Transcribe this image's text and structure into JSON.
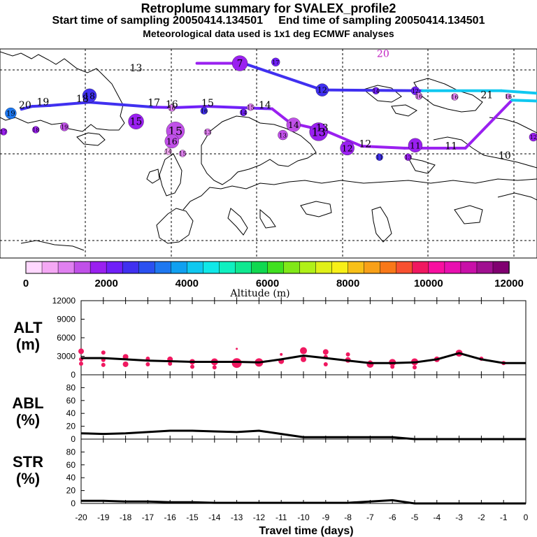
{
  "title": "Retroplume summary for SVALEX_profile2",
  "subtitle1": "Start time of sampling 20050414.134501     End time of sampling 20050414.134501",
  "subtitle2": "Meteorological data used is 1x1 deg ECMWF analyses",
  "colorbar": {
    "label": "Altitude (m)",
    "ticks": [
      "0",
      "2000",
      "4000",
      "6000",
      "8000",
      "10000",
      "12000"
    ],
    "colors": [
      "#ffd8ff",
      "#f4a8f4",
      "#e080f0",
      "#c050e8",
      "#9a20f0",
      "#7020f8",
      "#4030f0",
      "#2a50f0",
      "#1e78f0",
      "#10a0f0",
      "#10c8f0",
      "#10e8e8",
      "#10f0c0",
      "#10e890",
      "#10d850",
      "#40e020",
      "#80e818",
      "#b0f018",
      "#e0f018",
      "#f8f018",
      "#f8c018",
      "#f8a018",
      "#f87818",
      "#f85030",
      "#f01860",
      "#f810a0",
      "#e810b0",
      "#c810a8",
      "#a01090",
      "#800070"
    ]
  },
  "map_labels": [
    {
      "text": "20",
      "lat": 76.5,
      "lon": -53,
      "col": "#000000"
    },
    {
      "text": "19",
      "lat": 77.3,
      "lon": -48,
      "col": "#000000"
    },
    {
      "text": "18",
      "lat": 78,
      "lon": -37,
      "col": "#000000"
    },
    {
      "text": "17",
      "lat": 77.1,
      "lon": -17,
      "col": "#000000"
    },
    {
      "text": "16",
      "lat": 76.7,
      "lon": -12,
      "col": "#000000"
    },
    {
      "text": "15",
      "lat": 77.0,
      "lon": -2,
      "col": "#000000"
    },
    {
      "text": "14",
      "lat": 76.5,
      "lon": 14,
      "col": "#000000"
    },
    {
      "text": "13",
      "lat": 71.0,
      "lon": 30,
      "col": "#000000"
    },
    {
      "text": "12",
      "lat": 67.0,
      "lon": 42,
      "col": "#000000"
    },
    {
      "text": "11",
      "lat": 66.5,
      "lon": 66,
      "col": "#000000"
    },
    {
      "text": "21",
      "lat": 79.0,
      "lon": 76,
      "col": "#000000"
    },
    {
      "text": "13",
      "lat": 85.5,
      "lon": -22,
      "col": "#000000"
    },
    {
      "text": "20",
      "lat": 89.0,
      "lon": 47,
      "col": "#c020c0"
    },
    {
      "text": "10",
      "lat": 64.2,
      "lon": 81,
      "col": "#000000"
    }
  ],
  "chart_data": [
    {
      "type": "map-trajectory",
      "title": "Retroplume centroid track",
      "projection": {
        "lon_range": [
          -60,
          90
        ],
        "lat_range": [
          40,
          91
        ]
      },
      "track": {
        "lons": [
          -54,
          -51,
          -46,
          -35,
          -17,
          -11,
          -2,
          16,
          21,
          31,
          41,
          53,
          70,
          83,
          90
        ],
        "lats": [
          76.3,
          77.0,
          77.2,
          78.0,
          76.8,
          76.7,
          77.0,
          76.4,
          73.0,
          71.0,
          67.3,
          66.8,
          66.8,
          78.5,
          78.3
        ],
        "altitude_m": [
          2600,
          2600,
          2700,
          2500,
          2200,
          2200,
          2200,
          2800,
          2800,
          2800,
          2100,
          2200,
          2200,
          4000,
          4000
        ],
        "color_codes": [
          "#4030f0",
          "#4030f0",
          "#4030f0",
          "#4030f0",
          "#7020f8",
          "#7020f8",
          "#7020f8",
          "#9a20f0",
          "#9a20f0",
          "#9a20f0",
          "#9a20f0",
          "#9a20f0",
          "#9a20f0",
          "#10c8f0",
          "#10c8f0"
        ]
      },
      "upper_track": {
        "lons": [
          -5,
          8,
          30,
          58,
          80,
          90
        ],
        "lats": [
          87.5,
          87.5,
          81.0,
          80.8,
          80.8,
          80.2
        ],
        "color_codes": [
          "#9a20f0",
          "#4030f0",
          "#4030f0",
          "#10c8f0",
          "#10c8f0",
          "#10c8f0"
        ]
      },
      "clusters": [
        {
          "label": "7",
          "lat": 87.5,
          "lon": 7,
          "alt_m": 3500,
          "size": 11,
          "col": "#9a20f0"
        },
        {
          "label": "17",
          "lat": 87.8,
          "lon": 17,
          "alt_m": 2500,
          "size": 6,
          "col": "#7020f8"
        },
        {
          "label": "12",
          "lat": 81.0,
          "lon": 30,
          "alt_m": 2900,
          "size": 9,
          "col": "#4030f0"
        },
        {
          "label": "14",
          "lat": 80.8,
          "lon": 45,
          "alt_m": 2900,
          "size": 5,
          "col": "#7020f8"
        },
        {
          "label": "12",
          "lat": 80.8,
          "lon": 56,
          "alt_m": 2900,
          "size": 6,
          "col": "#7020f8"
        },
        {
          "label": "18",
          "lat": 79.6,
          "lon": -35,
          "alt_m": 2500,
          "size": 10,
          "col": "#4030f0"
        },
        {
          "label": "19",
          "lat": 75.3,
          "lon": -57,
          "alt_m": 3500,
          "size": 8,
          "col": "#1e78f0"
        },
        {
          "label": "15",
          "lat": 73.3,
          "lon": -22,
          "alt_m": 2000,
          "size": 11,
          "col": "#9a20f0"
        },
        {
          "label": "16",
          "lat": 76.6,
          "lon": -12,
          "alt_m": 1000,
          "size": 5,
          "col": "#e080f0"
        },
        {
          "label": "16",
          "lat": 75.9,
          "lon": -3,
          "alt_m": 3000,
          "size": 5,
          "col": "#4030f0"
        },
        {
          "label": "15",
          "lat": 76.8,
          "lon": 10,
          "alt_m": 1000,
          "size": 5,
          "col": "#e080f0"
        },
        {
          "label": "14",
          "lat": 75.5,
          "lon": 8,
          "alt_m": 2500,
          "size": 5,
          "col": "#7020f8"
        },
        {
          "label": "14",
          "lat": 72.5,
          "lon": 22,
          "alt_m": 1500,
          "size": 10,
          "col": "#c050e8"
        },
        {
          "label": "13",
          "lat": 70.8,
          "lon": 29,
          "alt_m": 2400,
          "size": 13,
          "col": "#9a20f0"
        },
        {
          "label": "13",
          "lat": 70.0,
          "lon": 19,
          "alt_m": 1000,
          "size": 7,
          "col": "#c050e8"
        },
        {
          "label": "12",
          "lat": 66.8,
          "lon": 37,
          "alt_m": 2000,
          "size": 10,
          "col": "#9a20f0"
        },
        {
          "label": "11",
          "lat": 64.6,
          "lon": 46,
          "alt_m": 2800,
          "size": 5,
          "col": "#4030f0"
        },
        {
          "label": "13",
          "lat": 64.6,
          "lon": 54,
          "alt_m": 2000,
          "size": 5,
          "col": "#9a20f0"
        },
        {
          "label": "11",
          "lat": 67.5,
          "lon": 56,
          "alt_m": 2000,
          "size": 10,
          "col": "#9a20f0"
        },
        {
          "label": "15",
          "lat": 71.0,
          "lon": -11,
          "alt_m": 1500,
          "size": 13,
          "col": "#c050e8"
        },
        {
          "label": "16",
          "lat": 68.5,
          "lon": -12,
          "alt_m": 1500,
          "size": 10,
          "col": "#c050e8"
        },
        {
          "label": "13",
          "lat": 70.7,
          "lon": -2,
          "alt_m": 1000,
          "size": 5,
          "col": "#e080f0"
        },
        {
          "label": "14",
          "lat": 66.0,
          "lon": -13,
          "alt_m": 500,
          "size": 5,
          "col": "#f4a8f4"
        },
        {
          "label": "15",
          "lat": 65.5,
          "lon": -9,
          "alt_m": 1000,
          "size": 5,
          "col": "#e080f0"
        },
        {
          "label": "19",
          "lat": 72.0,
          "lon": -42,
          "alt_m": 1500,
          "size": 6,
          "col": "#c050e8"
        },
        {
          "label": "18",
          "lat": 71.3,
          "lon": -50,
          "alt_m": 2000,
          "size": 5,
          "col": "#9a20f0"
        },
        {
          "label": "17",
          "lat": 70.8,
          "lon": -59,
          "alt_m": 2000,
          "size": 5,
          "col": "#9a20f0"
        },
        {
          "label": "16",
          "lat": 79.5,
          "lon": 57,
          "alt_m": 1000,
          "size": 5,
          "col": "#e080f0"
        },
        {
          "label": "16",
          "lat": 79.3,
          "lon": 67,
          "alt_m": 1000,
          "size": 5,
          "col": "#e080f0"
        },
        {
          "label": "12",
          "lat": 69.5,
          "lon": 89,
          "alt_m": 2000,
          "size": 6,
          "col": "#9a20f0"
        },
        {
          "label": "16",
          "lat": 79.4,
          "lon": 82,
          "alt_m": 1000,
          "size": 4,
          "col": "#e080f0"
        }
      ]
    },
    {
      "type": "line+scatter",
      "panel": "ALT",
      "ylabel": "ALT (m)",
      "xlim": [
        -20,
        0
      ],
      "ylim": [
        0,
        12000
      ],
      "yticks": [
        0,
        3000,
        6000,
        9000,
        12000
      ],
      "x": [
        -20,
        -19,
        -18,
        -17,
        -16,
        -15,
        -14,
        -13,
        -12,
        -11,
        -10,
        -9,
        -8,
        -7,
        -6,
        -5,
        -4,
        -3,
        -2,
        -1,
        0
      ],
      "mean_altitude_m": [
        2700,
        2700,
        2500,
        2300,
        2200,
        2100,
        2100,
        2100,
        2000,
        2500,
        3100,
        2700,
        2300,
        1900,
        1900,
        2000,
        2500,
        3500,
        2500,
        1900,
        1900
      ],
      "scatter_points": [
        {
          "x": -20,
          "y": 3800,
          "s": 4
        },
        {
          "x": -20,
          "y": 2500,
          "s": 3
        },
        {
          "x": -20,
          "y": 1800,
          "s": 3
        },
        {
          "x": -19,
          "y": 3600,
          "s": 3
        },
        {
          "x": -19,
          "y": 2400,
          "s": 3
        },
        {
          "x": -19,
          "y": 1600,
          "s": 3
        },
        {
          "x": -18,
          "y": 2900,
          "s": 4
        },
        {
          "x": -18,
          "y": 1700,
          "s": 4
        },
        {
          "x": -17,
          "y": 2600,
          "s": 3
        },
        {
          "x": -17,
          "y": 1700,
          "s": 3
        },
        {
          "x": -16,
          "y": 2500,
          "s": 4
        },
        {
          "x": -16,
          "y": 1800,
          "s": 3
        },
        {
          "x": -15,
          "y": 2100,
          "s": 4
        },
        {
          "x": -15,
          "y": 1300,
          "s": 3
        },
        {
          "x": -14,
          "y": 2100,
          "s": 5
        },
        {
          "x": -14,
          "y": 1200,
          "s": 3
        },
        {
          "x": -13,
          "y": 1900,
          "s": 7
        },
        {
          "x": -13,
          "y": 4200,
          "s": 1.5
        },
        {
          "x": -12,
          "y": 2000,
          "s": 6
        },
        {
          "x": -11,
          "y": 2200,
          "s": 4
        },
        {
          "x": -11,
          "y": 3300,
          "s": 2
        },
        {
          "x": -10,
          "y": 3900,
          "s": 5
        },
        {
          "x": -10,
          "y": 2500,
          "s": 4
        },
        {
          "x": -9,
          "y": 3700,
          "s": 4
        },
        {
          "x": -9,
          "y": 2900,
          "s": 3
        },
        {
          "x": -9,
          "y": 1700,
          "s": 3
        },
        {
          "x": -8,
          "y": 2400,
          "s": 4
        },
        {
          "x": -8,
          "y": 3300,
          "s": 3
        },
        {
          "x": -7,
          "y": 1700,
          "s": 5
        },
        {
          "x": -7,
          "y": 2000,
          "s": 3
        },
        {
          "x": -6,
          "y": 2000,
          "s": 5
        },
        {
          "x": -6,
          "y": 1300,
          "s": 3
        },
        {
          "x": -5,
          "y": 2100,
          "s": 5
        },
        {
          "x": -5,
          "y": 1200,
          "s": 3
        },
        {
          "x": -4,
          "y": 2500,
          "s": 4
        },
        {
          "x": -3,
          "y": 3500,
          "s": 5
        },
        {
          "x": -2,
          "y": 2600,
          "s": 3
        },
        {
          "x": -1,
          "y": 1900,
          "s": 3
        }
      ]
    },
    {
      "type": "line",
      "panel": "ABL",
      "ylabel": "ABL (%)",
      "xlim": [
        -20,
        0
      ],
      "ylim": [
        0,
        100
      ],
      "yticks": [
        0,
        20,
        40,
        60,
        80
      ],
      "x": [
        -20,
        -19,
        -18,
        -17,
        -16,
        -15,
        -14,
        -13,
        -12,
        -11,
        -10,
        -9,
        -8,
        -7,
        -6,
        -5,
        -4,
        -3,
        -2,
        -1,
        0
      ],
      "values": [
        9,
        8,
        9,
        11,
        13,
        13,
        12,
        11,
        13,
        8,
        3,
        3,
        3,
        3,
        3,
        0,
        0,
        0,
        0,
        0,
        0
      ]
    },
    {
      "type": "line",
      "panel": "STR",
      "ylabel": "STR (%)",
      "xlim": [
        -20,
        0
      ],
      "ylim": [
        0,
        100
      ],
      "yticks": [
        0,
        20,
        40,
        60,
        80
      ],
      "xlabel": "Travel time (days)",
      "xticks": [
        -20,
        -19,
        -18,
        -17,
        -16,
        -15,
        -14,
        -13,
        -12,
        -11,
        -10,
        -9,
        -8,
        -7,
        -6,
        -5,
        -4,
        -3,
        -2,
        -1,
        0
      ],
      "x": [
        -20,
        -19,
        -18,
        -17,
        -16,
        -15,
        -14,
        -13,
        -12,
        -11,
        -10,
        -9,
        -8,
        -7,
        -6,
        -5,
        -4,
        -3,
        -2,
        -1,
        0
      ],
      "values": [
        4,
        4,
        3,
        3,
        2,
        2,
        1,
        1,
        1,
        1,
        1,
        1,
        1,
        3,
        5,
        0,
        0,
        0,
        0,
        0,
        0
      ]
    }
  ],
  "panel_labels": {
    "alt": [
      "ALT",
      "(m)"
    ],
    "abl": [
      "ABL",
      "(%)"
    ],
    "str": [
      "STR",
      "(%)"
    ]
  }
}
